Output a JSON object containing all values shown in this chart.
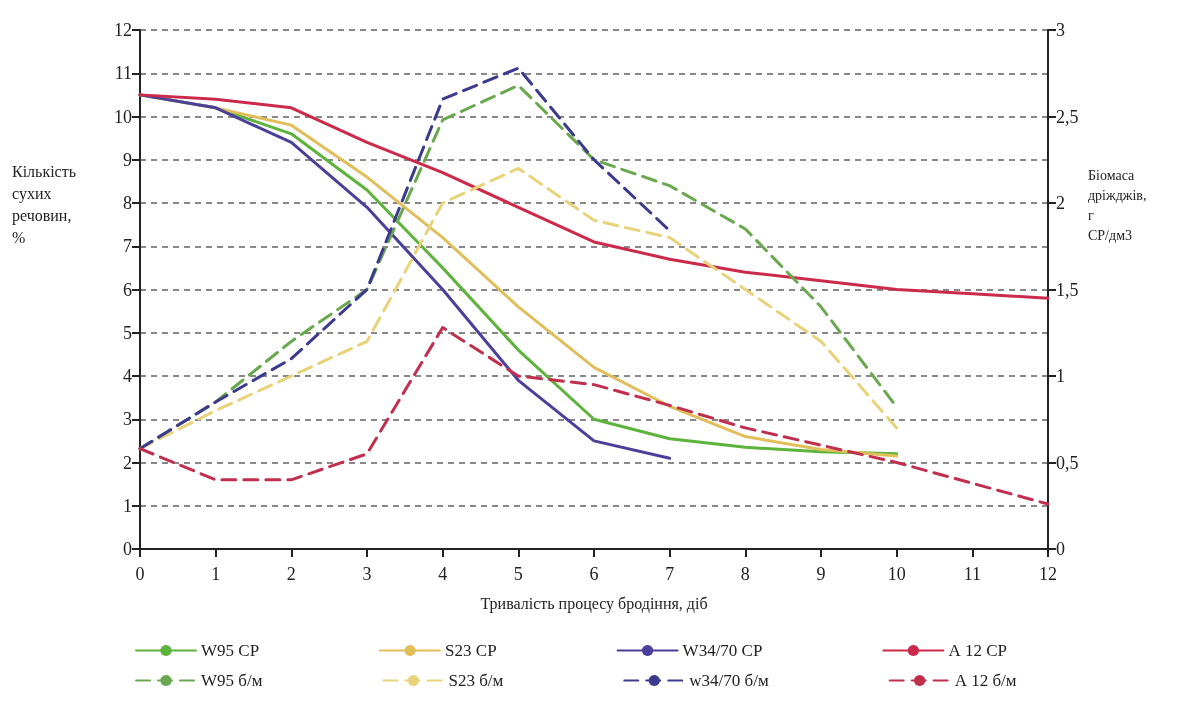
{
  "chart_data": {
    "type": "line",
    "xlabel": "Тривалість процесу бродіння, діб",
    "ylabel": "Кількість сухих речовин, %",
    "y2label": "Біомаса дріжджів, г СР/дм3",
    "x": [
      0,
      1,
      2,
      3,
      4,
      5,
      6,
      7,
      8,
      9,
      10,
      11,
      12
    ],
    "xlim": [
      0,
      12
    ],
    "xticks": [
      0,
      1,
      2,
      3,
      4,
      5,
      6,
      7,
      8,
      9,
      10,
      11,
      12
    ],
    "ylim": [
      0,
      12
    ],
    "yticks": [
      0,
      1,
      2,
      3,
      4,
      5,
      6,
      7,
      8,
      9,
      10,
      11,
      12
    ],
    "y2lim": [
      0,
      3
    ],
    "y2ticks": [
      0,
      {
        "value": 0.5,
        "label": "0,5"
      },
      1,
      {
        "value": 1.5,
        "label": "1,5"
      },
      2,
      {
        "value": 2.5,
        "label": "2,5"
      },
      3
    ],
    "grid": "y",
    "legend": "bottom",
    "marker": "none",
    "series": [
      {
        "name": "W95 СР",
        "color": "#5db33b",
        "line_style": "solid",
        "values": [
          10.5,
          10.2,
          9.6,
          8.3,
          6.5,
          4.6,
          3.0,
          2.55,
          2.35,
          2.25,
          2.2,
          null,
          null
        ]
      },
      {
        "name": "S23 СР",
        "color": "#e0be5a",
        "line_style": "solid",
        "values": [
          10.5,
          10.2,
          9.8,
          8.6,
          7.2,
          5.6,
          4.2,
          3.3,
          2.6,
          2.3,
          2.15,
          null,
          null
        ]
      },
      {
        "name": "W34/70 СР",
        "color": "#4a3f99",
        "line_style": "solid",
        "values": [
          10.5,
          10.2,
          9.4,
          7.9,
          6.0,
          3.9,
          2.5,
          2.1,
          null,
          null,
          null,
          null,
          null
        ]
      },
      {
        "name": "А 12 СР",
        "color": "#cc2a4a",
        "line_style": "solid",
        "values": [
          10.5,
          10.4,
          10.2,
          9.4,
          8.7,
          7.9,
          7.1,
          6.7,
          6.4,
          6.2,
          6.0,
          5.9,
          5.8
        ]
      },
      {
        "name": "W95 б/м",
        "color": "#6aa84f",
        "line_style": "dashed",
        "axis": "y2",
        "values": [
          0.58,
          0.85,
          1.2,
          1.5,
          2.48,
          2.68,
          2.25,
          2.1,
          1.85,
          1.4,
          0.82,
          null,
          null
        ]
      },
      {
        "name": "S23 б/м",
        "color": "#e8d27a",
        "line_style": "dashed",
        "axis": "y2",
        "values": [
          0.58,
          0.8,
          1.0,
          1.2,
          2.0,
          2.2,
          1.9,
          1.8,
          1.5,
          1.2,
          0.7,
          null,
          null
        ]
      },
      {
        "name": "w34/70 б/м",
        "color": "#3c3a8c",
        "line_style": "dashed",
        "axis": "y2",
        "values": [
          0.58,
          0.85,
          1.1,
          1.5,
          2.6,
          2.78,
          2.25,
          1.84,
          null,
          null,
          null,
          null,
          null
        ]
      },
      {
        "name": "А 12 б/м",
        "color": "#c0304e",
        "line_style": "dashed",
        "axis": "y2",
        "values": [
          0.58,
          0.4,
          0.4,
          0.55,
          1.28,
          1.0,
          0.95,
          0.83,
          0.7,
          0.6,
          0.5,
          0.38,
          0.26
        ]
      }
    ]
  }
}
